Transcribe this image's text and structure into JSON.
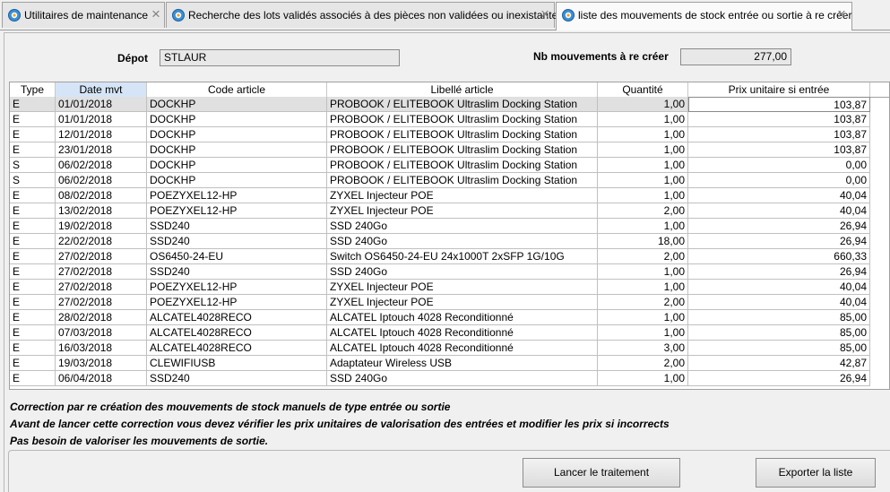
{
  "tabs": [
    {
      "label": "Utilitaires de maintenance",
      "active": false
    },
    {
      "label": "Recherche des lots validés associés à des pièces non validées ou inexistantes",
      "active": false
    },
    {
      "label": "liste des mouvements de stock entrée ou sortie à re créer",
      "active": true
    }
  ],
  "header": {
    "depot_label": "Dépot",
    "depot_value": "STLAUR",
    "nb_label": "Nb mouvements à re créer",
    "nb_value": "277,00"
  },
  "grid": {
    "columns": [
      "Type",
      "Date mvt",
      "Code article",
      "Libellé article",
      "Quantité",
      "Prix unitaire si entrée"
    ],
    "rows": [
      [
        "E",
        "01/01/2018",
        "DOCKHP",
        "PROBOOK / ELITEBOOK Ultraslim Docking Station",
        "1,00",
        "103,87"
      ],
      [
        "E",
        "01/01/2018",
        "DOCKHP",
        "PROBOOK / ELITEBOOK Ultraslim Docking Station",
        "1,00",
        "103,87"
      ],
      [
        "E",
        "12/01/2018",
        "DOCKHP",
        "PROBOOK / ELITEBOOK Ultraslim Docking Station",
        "1,00",
        "103,87"
      ],
      [
        "E",
        "23/01/2018",
        "DOCKHP",
        "PROBOOK / ELITEBOOK Ultraslim Docking Station",
        "1,00",
        "103,87"
      ],
      [
        "S",
        "06/02/2018",
        "DOCKHP",
        "PROBOOK / ELITEBOOK Ultraslim Docking Station",
        "1,00",
        "0,00"
      ],
      [
        "S",
        "06/02/2018",
        "DOCKHP",
        "PROBOOK / ELITEBOOK Ultraslim Docking Station",
        "1,00",
        "0,00"
      ],
      [
        "E",
        "08/02/2018",
        "POEZYXEL12-HP",
        "ZYXEL Injecteur POE",
        "1,00",
        "40,04"
      ],
      [
        "E",
        "13/02/2018",
        "POEZYXEL12-HP",
        "ZYXEL Injecteur POE",
        "2,00",
        "40,04"
      ],
      [
        "E",
        "19/02/2018",
        "SSD240",
        "SSD 240Go",
        "1,00",
        "26,94"
      ],
      [
        "E",
        "22/02/2018",
        "SSD240",
        "SSD 240Go",
        "18,00",
        "26,94"
      ],
      [
        "E",
        "27/02/2018",
        "OS6450-24-EU",
        "Switch OS6450-24-EU 24x1000T 2xSFP 1G/10G",
        "2,00",
        "660,33"
      ],
      [
        "E",
        "27/02/2018",
        "SSD240",
        "SSD 240Go",
        "1,00",
        "26,94"
      ],
      [
        "E",
        "27/02/2018",
        "POEZYXEL12-HP",
        "ZYXEL Injecteur POE",
        "1,00",
        "40,04"
      ],
      [
        "E",
        "27/02/2018",
        "POEZYXEL12-HP",
        "ZYXEL Injecteur POE",
        "2,00",
        "40,04"
      ],
      [
        "E",
        "28/02/2018",
        "ALCATEL4028RECO",
        "ALCATEL Iptouch 4028 Reconditionné",
        "1,00",
        "85,00"
      ],
      [
        "E",
        "07/03/2018",
        "ALCATEL4028RECO",
        "ALCATEL Iptouch 4028 Reconditionné",
        "1,00",
        "85,00"
      ],
      [
        "E",
        "16/03/2018",
        "ALCATEL4028RECO",
        "ALCATEL Iptouch 4028 Reconditionné",
        "3,00",
        "85,00"
      ],
      [
        "E",
        "19/03/2018",
        "CLEWIFIUSB",
        "Adaptateur Wireless USB",
        "2,00",
        "42,87"
      ],
      [
        "E",
        "06/04/2018",
        "SSD240",
        "SSD 240Go",
        "1,00",
        "26,94"
      ]
    ]
  },
  "notes": [
    "Correction par re création des mouvements de stock manuels de type entrée ou sortie",
    "Avant de lancer cette correction vous devez vérifier les prix unitaires de valorisation des entrées et modifier les prix si incorrects",
    "Pas besoin de valoriser les mouvements de sortie."
  ],
  "buttons": {
    "launch": "Lancer le traitement",
    "export": "Exporter la liste"
  },
  "icons": {
    "tab": "settings-gear-icon",
    "close": "close-icon"
  }
}
